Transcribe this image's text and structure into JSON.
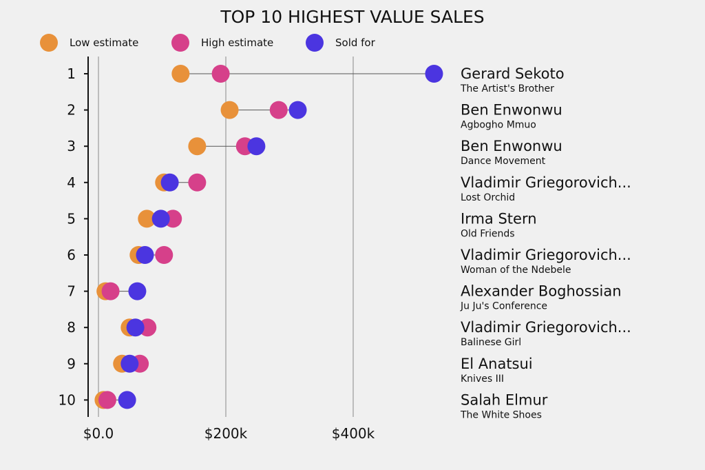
{
  "chart_data": {
    "type": "scatter",
    "subtype": "dot-plot",
    "title": "TOP 10 HIGHEST VALUE SALES",
    "xlabel": "",
    "ylabel": "",
    "xlim": [
      -8,
      520
    ],
    "x_ticks": [
      {
        "value": 0,
        "label": "$0.0"
      },
      {
        "value": 200,
        "label": "$200k"
      },
      {
        "value": 400,
        "label": "$400k"
      }
    ],
    "units": "thousands USD",
    "grid": true,
    "legend_position": "top",
    "series": [
      {
        "name": "Low estimate",
        "key": "low",
        "color": "#E8913A"
      },
      {
        "name": "High estimate",
        "key": "high",
        "color": "#D6408A"
      },
      {
        "name": "Sold for",
        "key": "sold",
        "color": "#4B35E0"
      }
    ],
    "rows": [
      {
        "rank": "1",
        "artist": "Gerard Sekoto",
        "work": "The Artist's Brother",
        "low": 129,
        "high": 192,
        "sold": 527
      },
      {
        "rank": "2",
        "artist": "Ben Enwonwu",
        "work": "Agbogho Mmuo",
        "low": 206,
        "high": 283,
        "sold": 313
      },
      {
        "rank": "3",
        "artist": "Ben Enwonwu",
        "work": "Dance Movement",
        "low": 155,
        "high": 230,
        "sold": 248
      },
      {
        "rank": "4",
        "artist": "Vladimir Griegorovich...",
        "work": "Lost Orchid",
        "low": 103,
        "high": 155,
        "sold": 112
      },
      {
        "rank": "5",
        "artist": "Irma Stern",
        "work": "Old Friends",
        "low": 76,
        "high": 117,
        "sold": 98
      },
      {
        "rank": "6",
        "artist": "Vladimir Griegorovich...",
        "work": "Woman of the Ndebele",
        "low": 63,
        "high": 103,
        "sold": 73
      },
      {
        "rank": "7",
        "artist": "Alexander Boghossian",
        "work": "Ju Ju's Conference",
        "low": 11,
        "high": 19,
        "sold": 61
      },
      {
        "rank": "8",
        "artist": "Vladimir Griegorovich...",
        "work": "Balinese Girl",
        "low": 49,
        "high": 77,
        "sold": 58
      },
      {
        "rank": "9",
        "artist": "El Anatsui",
        "work": "Knives III",
        "low": 37,
        "high": 65,
        "sold": 49
      },
      {
        "rank": "10",
        "artist": "Salah Elmur",
        "work": "The White Shoes",
        "low": 8,
        "high": 14,
        "sold": 45
      }
    ]
  }
}
